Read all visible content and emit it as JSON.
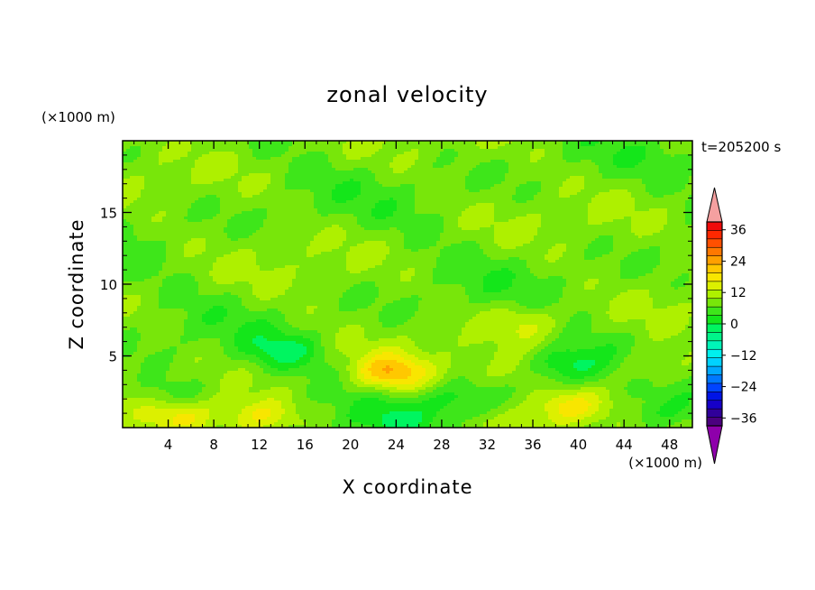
{
  "chart_data": {
    "type": "heatmap",
    "title": "zonal velocity",
    "xlabel": "X coordinate",
    "ylabel": "Z coordinate",
    "x_unit": "(×1000 m)",
    "y_unit": "(×1000 m)",
    "time_label": "t=205200 s",
    "xlim": [
      0,
      50
    ],
    "ylim": [
      0,
      20
    ],
    "x_ticks": [
      4,
      8,
      12,
      16,
      20,
      24,
      28,
      32,
      36,
      40,
      44,
      48
    ],
    "y_ticks": [
      5,
      10,
      15
    ],
    "colorbar": {
      "levels": [
        -42,
        -39,
        -36,
        -33,
        -30,
        -27,
        -24,
        -21,
        -18,
        -15,
        -12,
        -9,
        -6,
        -3,
        0,
        3,
        6,
        9,
        12,
        15,
        18,
        21,
        24,
        27,
        30,
        33,
        36,
        39,
        42
      ],
      "tick_values": [
        -36,
        -24,
        -12,
        0,
        12,
        24,
        36
      ],
      "tick_labels": [
        "−36",
        "−24",
        "−12",
        "0",
        "12",
        "24",
        "36"
      ],
      "colors": [
        "#8e00ab",
        "#4b007f",
        "#30009a",
        "#1600c8",
        "#0014e6",
        "#0044ff",
        "#0078ff",
        "#00a8ff",
        "#00d2ff",
        "#00f0ee",
        "#00f5b8",
        "#00f58a",
        "#00f560",
        "#14e61a",
        "#3ee61a",
        "#78e60a",
        "#aef000",
        "#dcf000",
        "#f8e600",
        "#ffc800",
        "#ffa000",
        "#ff7800",
        "#ff5000",
        "#ff2800",
        "#f00a0a",
        "#f5a0a0"
      ],
      "extend": "both"
    },
    "field_features": [
      {
        "x": 23.5,
        "z": 3.8,
        "u": 12
      },
      {
        "x": 12.0,
        "z": 0.7,
        "u": 9
      },
      {
        "x": 5.0,
        "z": 0.9,
        "u": 8
      },
      {
        "x": 39.0,
        "z": 1.5,
        "u": 10
      },
      {
        "x": 46.5,
        "z": 4.2,
        "u": 6
      },
      {
        "x": 14.0,
        "z": 5.3,
        "u": -7
      },
      {
        "x": 39.0,
        "z": 4.4,
        "u": -8
      },
      {
        "x": 29.5,
        "z": 2.0,
        "u": -6
      },
      {
        "x": 24.0,
        "z": 0.5,
        "u": -5
      },
      {
        "x": 4.0,
        "z": 2.2,
        "u": -5
      },
      {
        "x": 47.0,
        "z": 1.0,
        "u": -5
      },
      {
        "x": 34.0,
        "z": 3.8,
        "u": 4
      },
      {
        "x": 35.5,
        "z": 7.4,
        "u": 5
      }
    ]
  }
}
